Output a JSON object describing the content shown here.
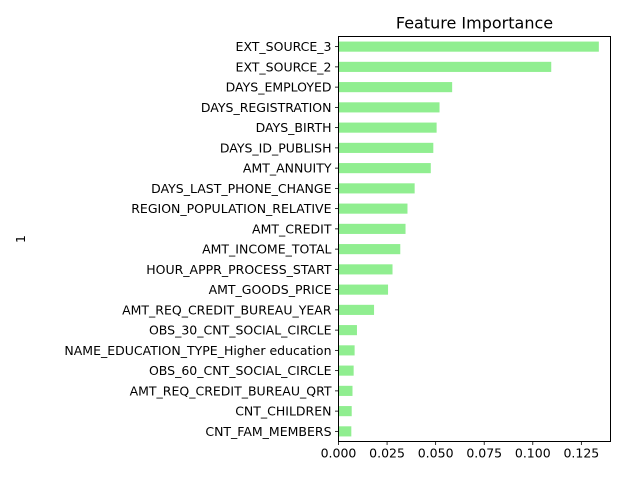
{
  "chart_data": {
    "type": "bar",
    "orientation": "horizontal",
    "title": "Feature Importance",
    "xlabel": "",
    "ylabel": "1",
    "xlim": [
      0,
      0.14
    ],
    "xticks": [
      "0.000",
      "0.025",
      "0.050",
      "0.075",
      "0.100",
      "0.125"
    ],
    "xtick_values": [
      0,
      0.025,
      0.05,
      0.075,
      0.1,
      0.125
    ],
    "bar_color": "#90ee90",
    "grid": false,
    "categories": [
      "EXT_SOURCE_3",
      "EXT_SOURCE_2",
      "DAYS_EMPLOYED",
      "DAYS_REGISTRATION",
      "DAYS_BIRTH",
      "DAYS_ID_PUBLISH",
      "AMT_ANNUITY",
      "DAYS_LAST_PHONE_CHANGE",
      "REGION_POPULATION_RELATIVE",
      "AMT_CREDIT",
      "AMT_INCOME_TOTAL",
      "HOUR_APPR_PROCESS_START",
      "AMT_GOODS_PRICE",
      "AMT_REQ_CREDIT_BUREAU_YEAR",
      "OBS_30_CNT_SOCIAL_CIRCLE",
      "NAME_EDUCATION_TYPE_Higher education",
      "OBS_60_CNT_SOCIAL_CIRCLE",
      "AMT_REQ_CREDIT_BUREAU_QRT",
      "CNT_CHILDREN",
      "CNT_FAM_MEMBERS"
    ],
    "values": [
      0.134,
      0.1095,
      0.0585,
      0.052,
      0.0505,
      0.0488,
      0.0475,
      0.0392,
      0.0355,
      0.0345,
      0.0318,
      0.0278,
      0.0255,
      0.0183,
      0.0095,
      0.0083,
      0.0078,
      0.0072,
      0.0068,
      0.0066
    ]
  }
}
